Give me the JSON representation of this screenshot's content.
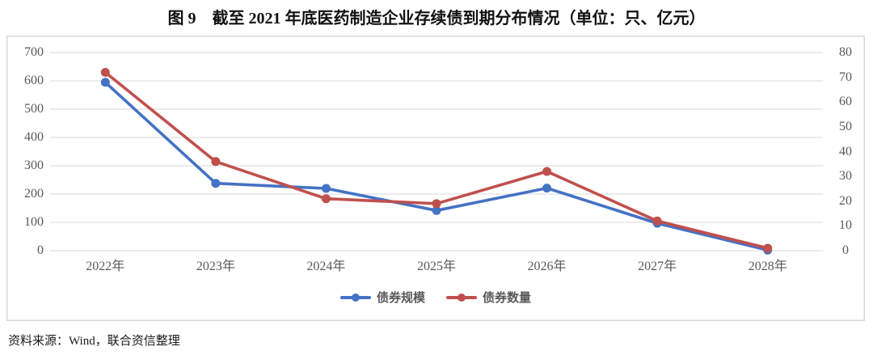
{
  "title": "图 9　截至 2021 年底医药制造企业存续债到期分布情况（单位：只、亿元）",
  "source_note": "资料来源：Wind，联合资信整理",
  "colors": {
    "scale_series": "#4472C4",
    "count_series": "#C0504D",
    "grid": "#D9D9D9",
    "frame": "#D9D9D9",
    "axis_text": "#595959"
  },
  "legend": {
    "items": [
      {
        "label": "债券规模",
        "color_key": "scale_series"
      },
      {
        "label": "债券数量",
        "color_key": "count_series"
      }
    ]
  },
  "chart_data": {
    "type": "line",
    "categories": [
      "2022年",
      "2023年",
      "2024年",
      "2025年",
      "2026年",
      "2027年",
      "2028年"
    ],
    "series": [
      {
        "name": "债券规模",
        "axis": "left",
        "color_key": "scale_series",
        "values": [
          595,
          238,
          220,
          142,
          221,
          97,
          2
        ]
      },
      {
        "name": "债券数量",
        "axis": "right",
        "color_key": "count_series",
        "values": [
          72,
          36,
          21,
          19,
          32,
          12,
          1
        ]
      }
    ],
    "left_axis": {
      "ticks": [
        700,
        600,
        500,
        400,
        300,
        200,
        100,
        0
      ],
      "min": 0,
      "max": 700
    },
    "right_axis": {
      "ticks": [
        80,
        70,
        60,
        50,
        40,
        30,
        20,
        10,
        0
      ],
      "min": 0,
      "max": 80
    },
    "grid": true,
    "legend_position": "bottom",
    "xlabel": "",
    "ylabel_left": "亿元",
    "ylabel_right": "只"
  }
}
